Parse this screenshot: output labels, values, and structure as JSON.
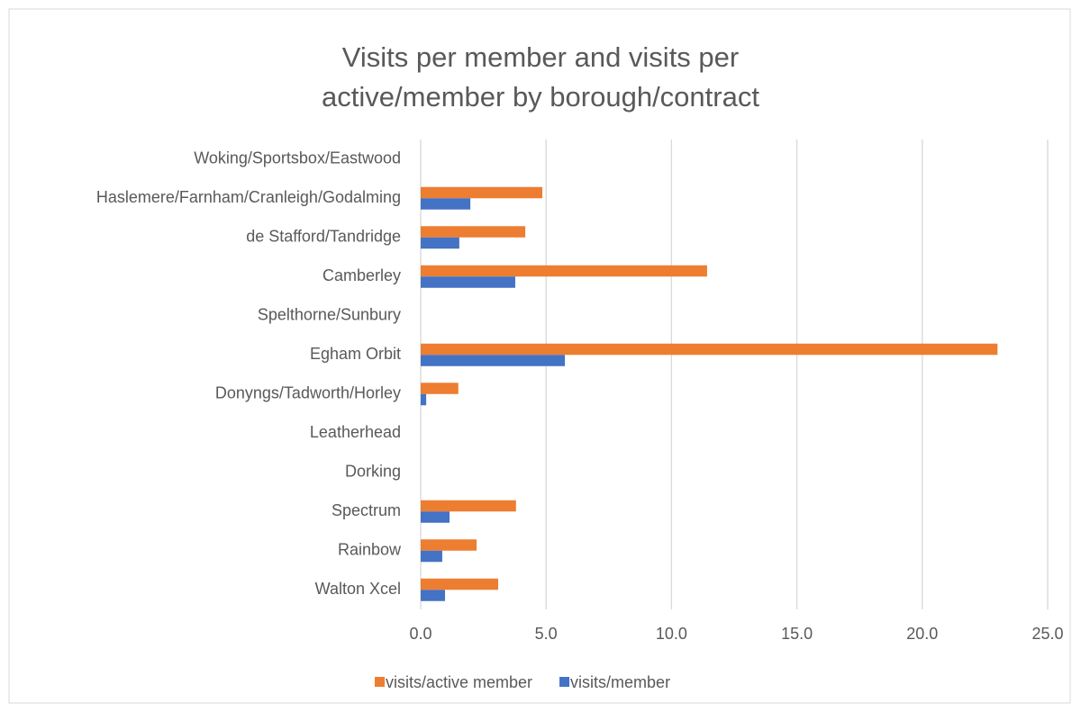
{
  "chart_data": {
    "type": "bar",
    "orientation": "horizontal",
    "title": "Visits per member and visits per active/member by borough/contract",
    "categories": [
      "Woking/Sportsbox/Eastwood",
      "Haslemere/Farnham/Cranleigh/Godalming",
      "de Stafford/Tandridge",
      "Camberley",
      "Spelthorne/Sunbury",
      "Egham Orbit",
      "Donyngs/Tadworth/Horley",
      "Leatherhead",
      "Dorking",
      "Spectrum",
      "Rainbow",
      "Walton Xcel"
    ],
    "series": [
      {
        "name": "visits/active member",
        "color": "#ed7d31",
        "values": [
          null,
          4.85,
          4.17,
          11.42,
          null,
          23.0,
          1.5,
          null,
          null,
          3.8,
          2.23,
          3.09
        ]
      },
      {
        "name": "visits/member",
        "color": "#4472c4",
        "values": [
          null,
          1.98,
          1.54,
          3.77,
          null,
          5.75,
          0.22,
          null,
          null,
          1.15,
          0.86,
          0.97
        ]
      }
    ],
    "xlim": [
      0,
      25
    ],
    "xticks": [
      {
        "value": 0,
        "label": "0.0"
      },
      {
        "value": 5,
        "label": "5.0"
      },
      {
        "value": 10,
        "label": "10.0"
      },
      {
        "value": 15,
        "label": "15.0"
      },
      {
        "value": 20,
        "label": "20.0"
      },
      {
        "value": 25,
        "label": "25.0"
      }
    ],
    "grid": true,
    "legend": "bottom"
  }
}
